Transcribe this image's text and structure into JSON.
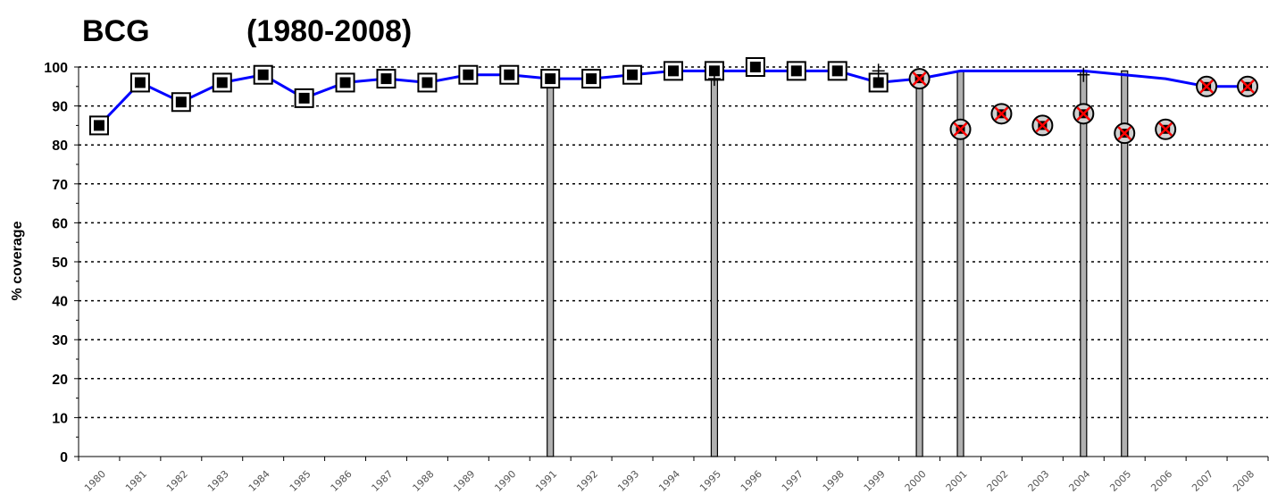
{
  "chart_data": {
    "type": "line",
    "title": "BCG",
    "subtitle": "(1980-2008)",
    "ylabel": "% coverage",
    "xlabel": "",
    "ylim": [
      0,
      100
    ],
    "yticks": [
      0,
      10,
      20,
      30,
      40,
      50,
      60,
      70,
      80,
      90,
      100
    ],
    "grid": true,
    "x": [
      "1980",
      "1981",
      "1982",
      "1983",
      "1984",
      "1985",
      "1986",
      "1987",
      "1988",
      "1989",
      "1990",
      "1991",
      "1992",
      "1993",
      "1994",
      "1995",
      "1996",
      "1997",
      "1998",
      "1999",
      "2000",
      "2001",
      "2002",
      "2003",
      "2004",
      "2005",
      "2006",
      "2007",
      "2008"
    ],
    "series": [
      {
        "style": "line",
        "color": "#0000ff",
        "values": [
          85,
          96,
          91,
          96,
          98,
          92,
          96,
          97,
          96,
          98,
          98,
          97,
          97,
          98,
          99,
          99,
          99,
          99,
          99,
          96,
          97,
          99,
          99,
          99,
          99,
          98,
          97,
          95,
          95
        ]
      },
      {
        "style": "square-markers",
        "color": "#000000",
        "values": [
          85,
          96,
          91,
          96,
          98,
          92,
          96,
          97,
          96,
          98,
          98,
          97,
          97,
          98,
          99,
          99,
          100,
          99,
          99,
          96,
          null,
          null,
          null,
          null,
          null,
          null,
          null,
          null,
          null
        ]
      },
      {
        "style": "circle-x-markers",
        "color": "#ff0000",
        "values": [
          null,
          null,
          null,
          null,
          null,
          null,
          null,
          null,
          null,
          null,
          null,
          null,
          null,
          null,
          null,
          null,
          null,
          null,
          null,
          null,
          97,
          84,
          88,
          85,
          88,
          83,
          84,
          95,
          95
        ]
      },
      {
        "style": "plus-markers",
        "color": "#000000",
        "values": [
          null,
          null,
          null,
          null,
          null,
          null,
          null,
          null,
          null,
          null,
          null,
          null,
          null,
          null,
          null,
          97,
          null,
          null,
          null,
          99,
          null,
          null,
          null,
          null,
          98,
          null,
          null,
          null,
          null
        ]
      },
      {
        "style": "bars",
        "color": "#b0b0b0",
        "values": [
          null,
          null,
          null,
          null,
          null,
          null,
          null,
          null,
          null,
          null,
          null,
          97,
          null,
          null,
          null,
          97,
          null,
          null,
          null,
          null,
          99,
          99,
          null,
          null,
          99,
          99,
          null,
          null,
          null
        ]
      }
    ]
  }
}
